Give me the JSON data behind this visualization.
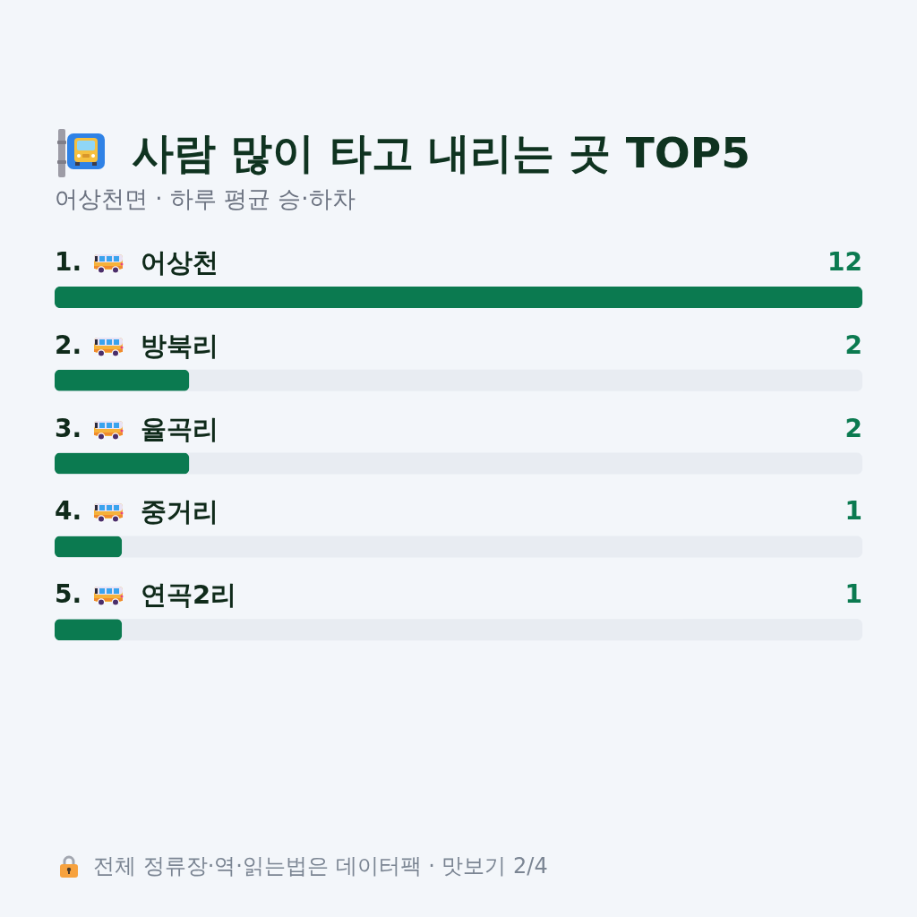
{
  "chart_data": {
    "type": "bar",
    "orientation": "horizontal",
    "title": "사람 많이 타고 내리는 곳 TOP5",
    "subtitle": "어상천면 · 하루 평균 승·하차",
    "categories": [
      "1. 어상천",
      "2. 방북리",
      "3. 율곡리",
      "4. 중거리",
      "5. 연곡2리"
    ],
    "values": [
      12,
      2,
      2,
      1,
      1
    ],
    "color": "#0b7a50",
    "xlim": [
      0,
      12
    ],
    "data_labels": true,
    "annotations": [
      "전체 정류장·역·읽는법은 데이터팩 · 맛보기 2/4"
    ]
  }
}
